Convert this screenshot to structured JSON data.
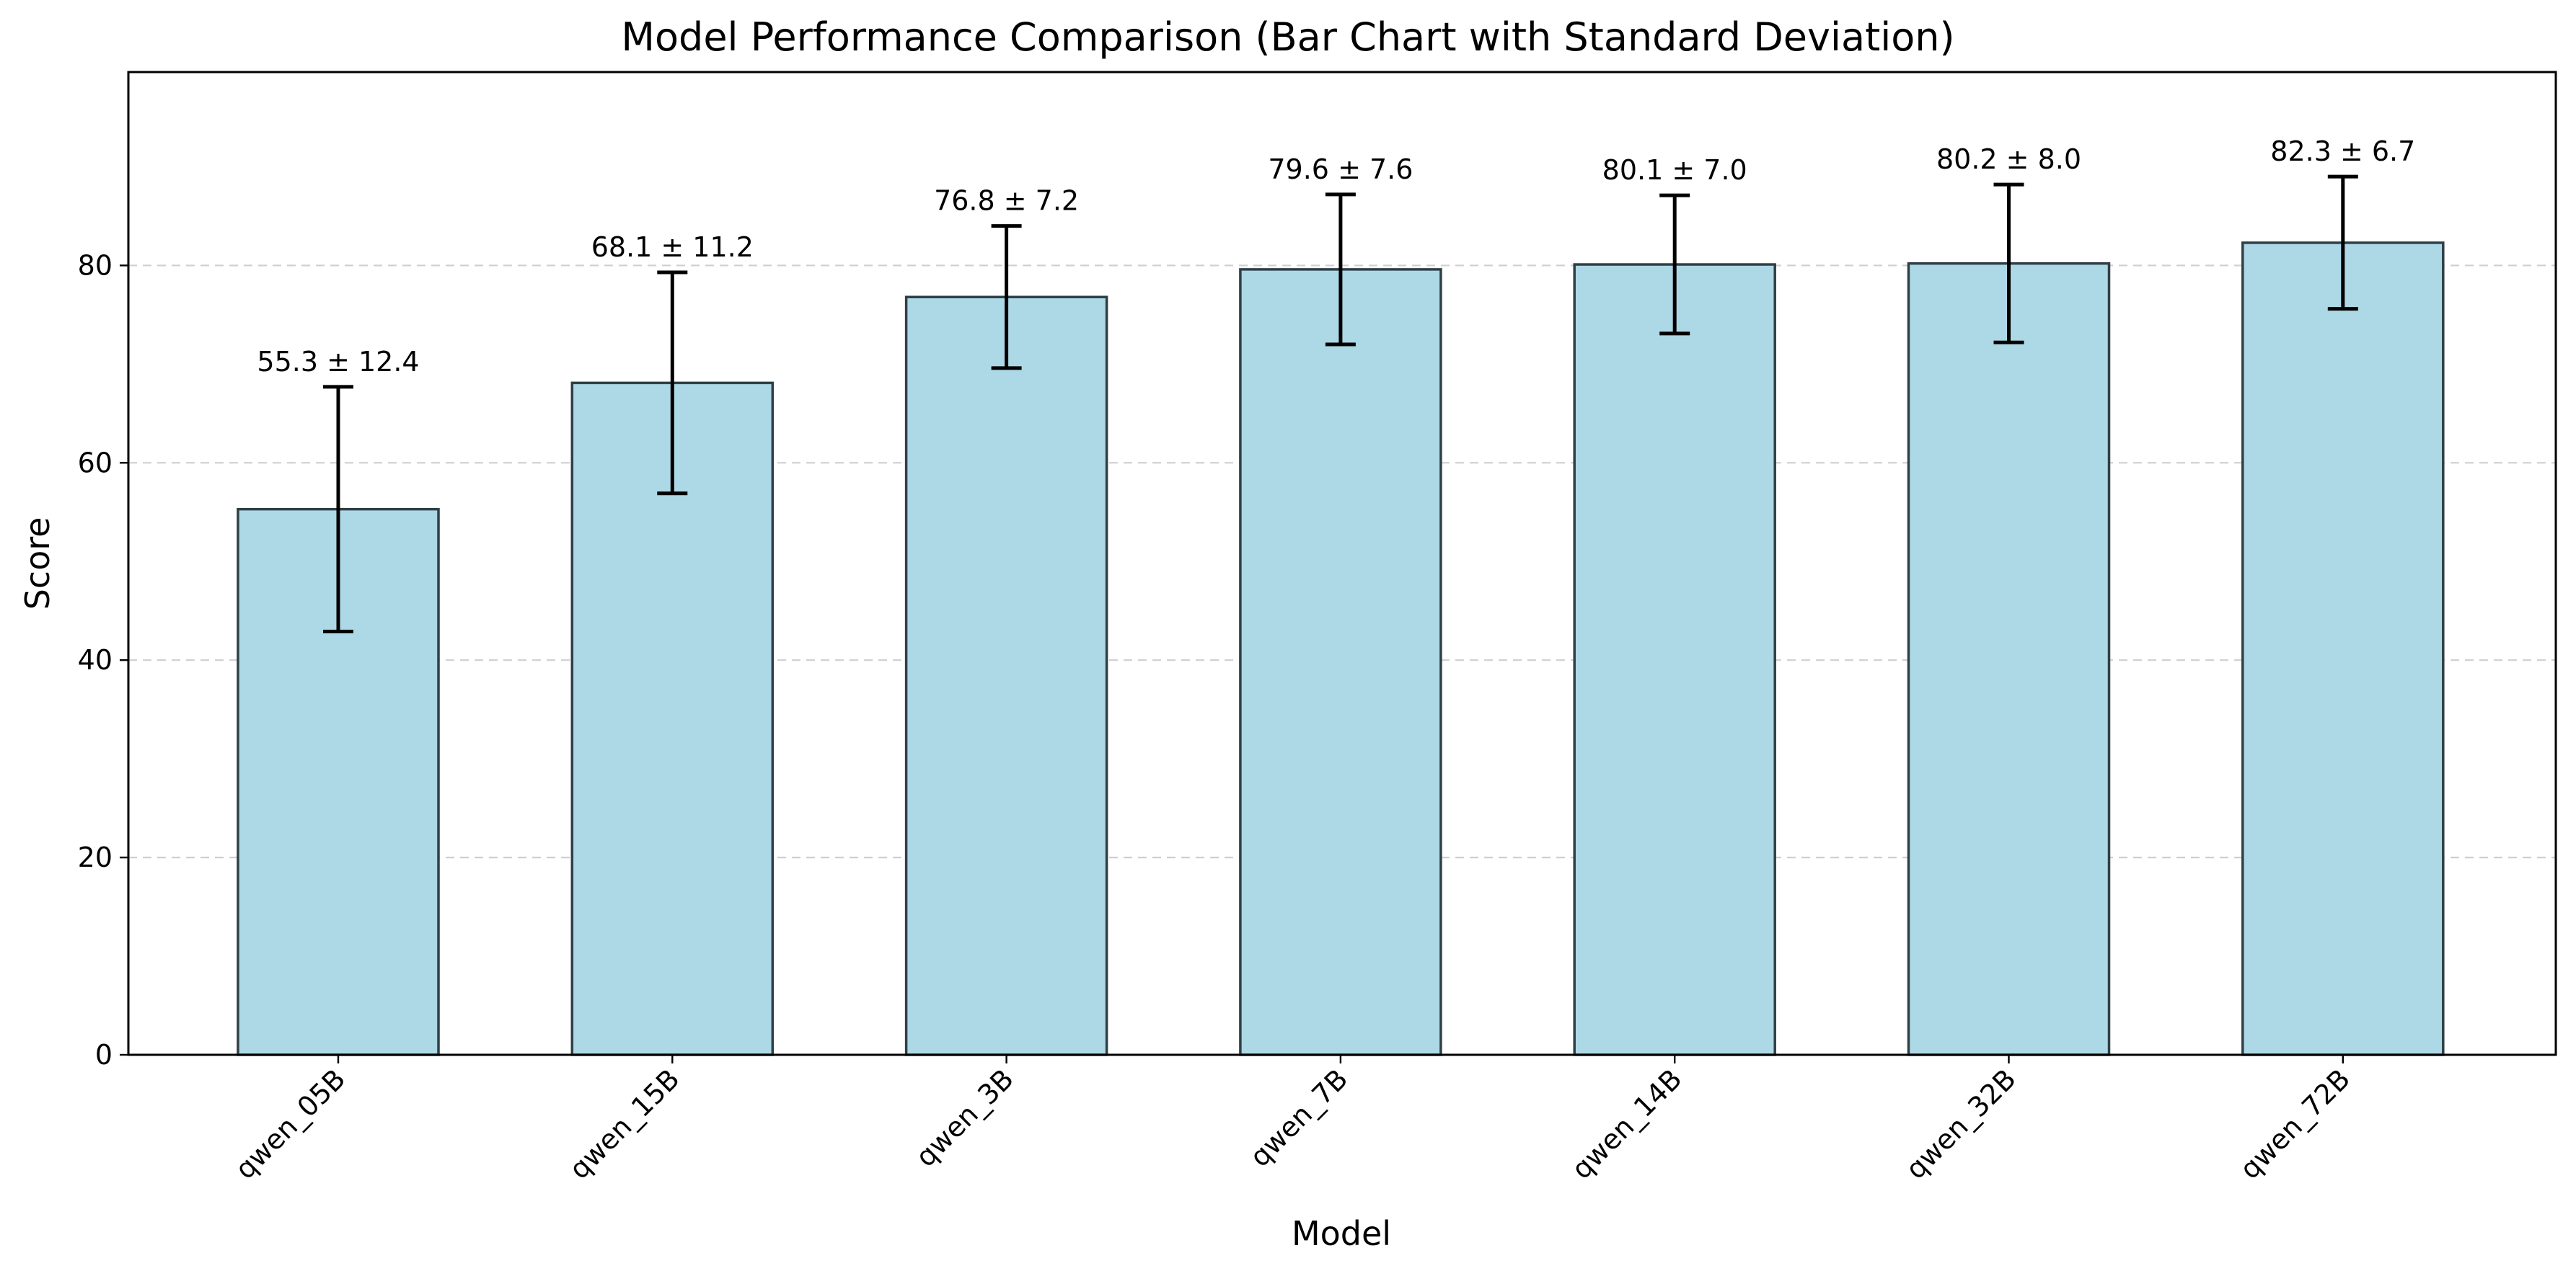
{
  "chart_data": {
    "type": "bar",
    "title": "Model Performance Comparison (Bar Chart with Standard Deviation)",
    "xlabel": "Model",
    "ylabel": "Score",
    "categories": [
      "qwen_05B",
      "qwen_15B",
      "qwen_3B",
      "qwen_7B",
      "qwen_14B",
      "qwen_32B",
      "qwen_72B"
    ],
    "values": [
      55.3,
      68.1,
      76.8,
      79.6,
      80.1,
      80.2,
      82.3
    ],
    "errors": [
      12.4,
      11.2,
      7.2,
      7.6,
      7.0,
      8.0,
      6.7
    ],
    "value_labels": [
      "55.3 ± 12.4",
      "68.1 ± 11.2",
      "76.8 ± 7.2",
      "79.6 ± 7.6",
      "80.1 ± 7.0",
      "80.2 ± 8.0",
      "82.3 ± 6.7"
    ],
    "ylim": [
      0,
      99.6
    ],
    "yticks": [
      0,
      20,
      40,
      60,
      80
    ],
    "ytick_labels": [
      "0",
      "20",
      "40",
      "60",
      "80"
    ],
    "grid": "y-dashed",
    "bar_color": "#ADD8E6",
    "bar_edge_color": "#2f3f46",
    "error_color": "#000000"
  }
}
